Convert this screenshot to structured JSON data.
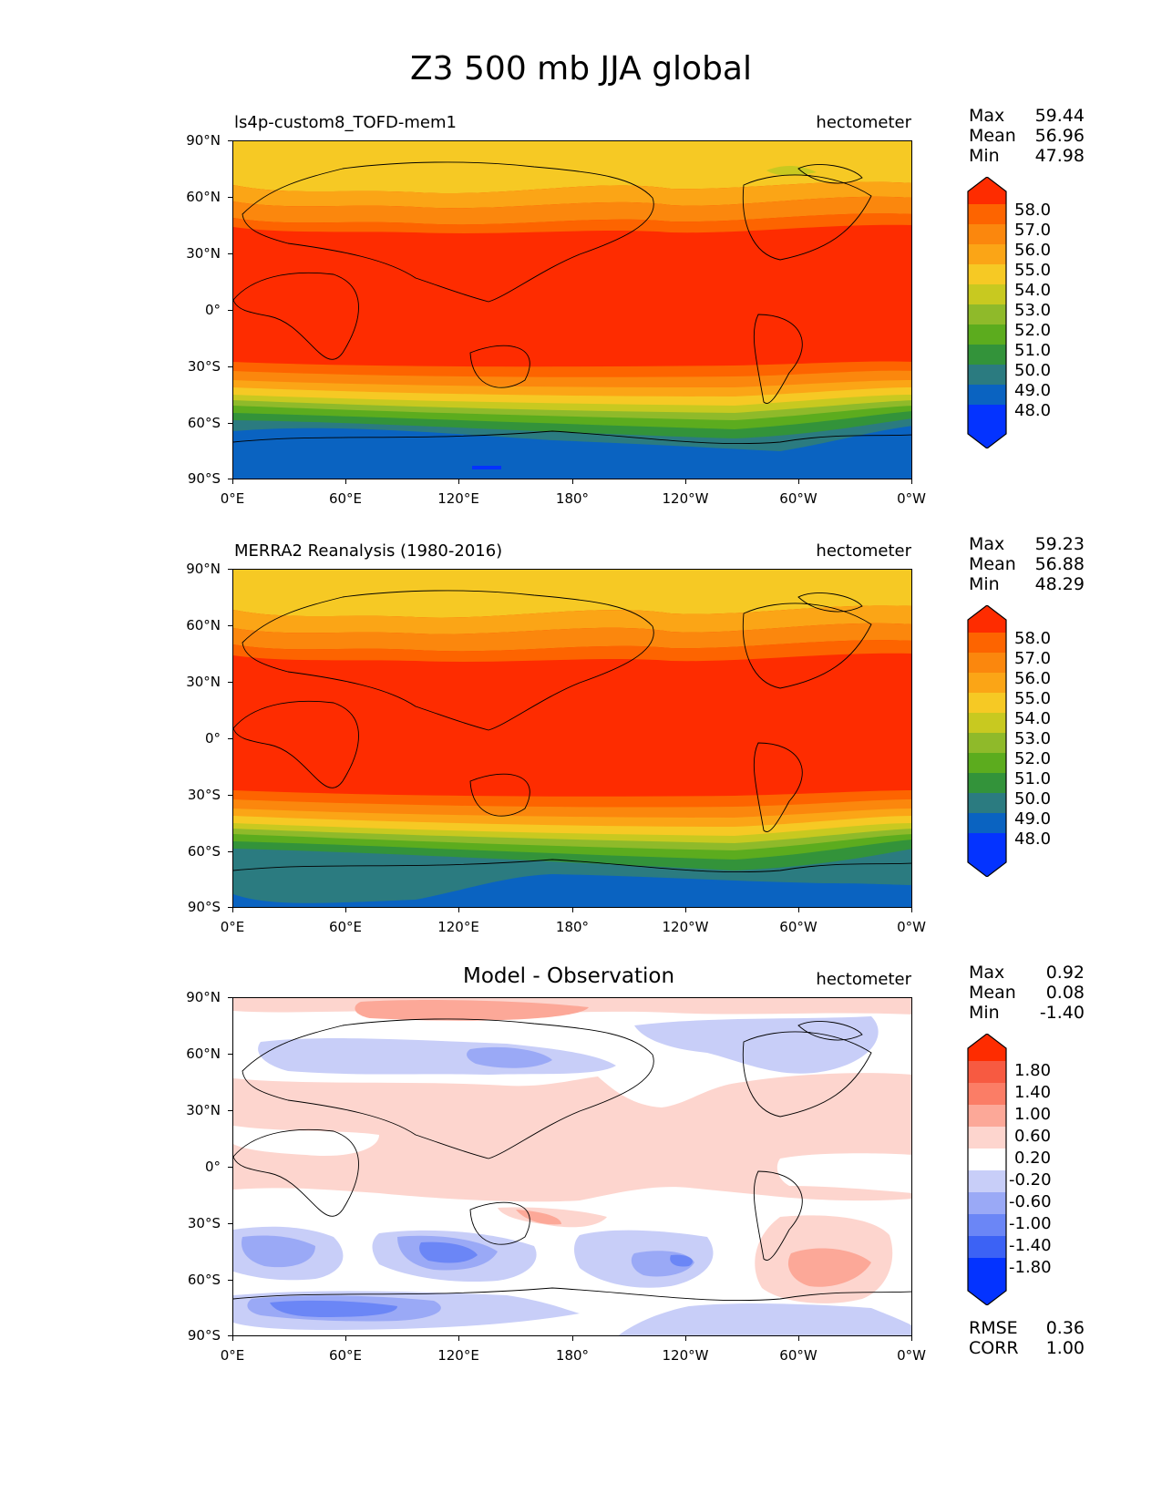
{
  "title": "Z3 500 mb JJA global",
  "lat_labels": [
    "90°N",
    "60°N",
    "30°N",
    "0°",
    "30°S",
    "60°S",
    "90°S"
  ],
  "lon_labels": [
    "0°E",
    "60°E",
    "120°E",
    "180°",
    "120°W",
    "60°W",
    "0°W"
  ],
  "colors": {
    "abs_levels": [
      "#0433ff",
      "#0a63c1",
      "#2b7b80",
      "#33933a",
      "#5cac1e",
      "#8fba2a",
      "#c8c920",
      "#f6c924",
      "#fba516",
      "#fb870d",
      "#fd6400",
      "#fe2c00"
    ],
    "diff_levels": [
      "#0433ff",
      "#3c62f5",
      "#6b86f6",
      "#9aa9f6",
      "#c8cef8",
      "#ffffff",
      "#fdd5ce",
      "#fca898",
      "#fb7d66",
      "#f75a41",
      "#fe2c00"
    ]
  },
  "panels": [
    {
      "name": "model",
      "title": "ls4p-custom8_TOFD-mem1",
      "units": "hectometer",
      "stats": [
        {
          "k": "Max",
          "v": "59.44"
        },
        {
          "k": "Mean",
          "v": "56.96"
        },
        {
          "k": "Min",
          "v": "47.98"
        }
      ],
      "colorbar_labels": [
        "58.0",
        "57.0",
        "56.0",
        "55.0",
        "54.0",
        "53.0",
        "52.0",
        "51.0",
        "50.0",
        "49.0",
        "48.0"
      ],
      "extra_stats": []
    },
    {
      "name": "observation",
      "title": "MERRA2 Reanalysis (1980-2016)",
      "units": "hectometer",
      "stats": [
        {
          "k": "Max",
          "v": "59.23"
        },
        {
          "k": "Mean",
          "v": "56.88"
        },
        {
          "k": "Min",
          "v": "48.29"
        }
      ],
      "colorbar_labels": [
        "58.0",
        "57.0",
        "56.0",
        "55.0",
        "54.0",
        "53.0",
        "52.0",
        "51.0",
        "50.0",
        "49.0",
        "48.0"
      ],
      "extra_stats": []
    },
    {
      "name": "difference",
      "title": "Model - Observation",
      "units": "hectometer",
      "stats": [
        {
          "k": "Max",
          "v": "0.92"
        },
        {
          "k": "Mean",
          "v": "0.08"
        },
        {
          "k": "Min",
          "v": "-1.40"
        }
      ],
      "colorbar_labels": [
        "1.80",
        "1.40",
        "1.00",
        "0.60",
        "0.20",
        "-0.20",
        "-0.60",
        "-1.00",
        "-1.40",
        "-1.80"
      ],
      "extra_stats": [
        {
          "k": "RMSE",
          "v": "0.36"
        },
        {
          "k": "CORR",
          "v": "1.00"
        }
      ]
    }
  ]
}
